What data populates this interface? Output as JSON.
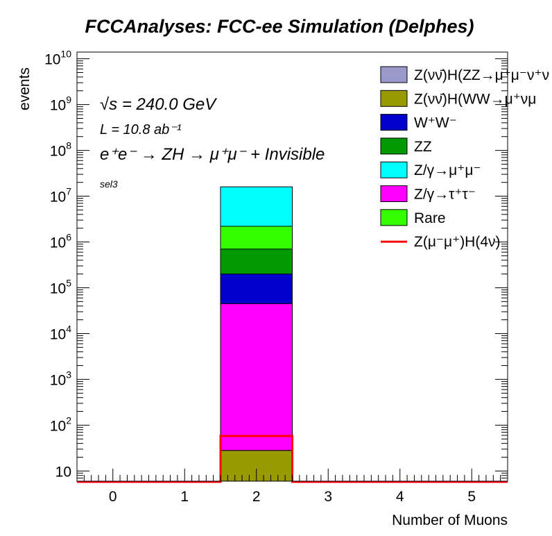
{
  "chart_data": {
    "type": "bar",
    "title": "FCCAnalyses: FCC-ee Simulation (Delphes)",
    "xlabel": "Number of Muons",
    "ylabel": "events",
    "xlim": [
      -0.5,
      5.5
    ],
    "ylim": [
      6,
      14000000000
    ],
    "yscale": "log",
    "stacked": true,
    "grid": false,
    "legend_position": "top-right",
    "x_ticks": [
      "0",
      "1",
      "2",
      "3",
      "4",
      "5"
    ],
    "y_ticks": [
      {
        "value": 10,
        "base": "10",
        "exp": ""
      },
      {
        "value": 100,
        "base": "10",
        "exp": "2"
      },
      {
        "value": 1000,
        "base": "10",
        "exp": "3"
      },
      {
        "value": 10000,
        "base": "10",
        "exp": "4"
      },
      {
        "value": 100000,
        "base": "10",
        "exp": "5"
      },
      {
        "value": 1000000,
        "base": "10",
        "exp": "6"
      },
      {
        "value": 10000000,
        "base": "10",
        "exp": "7"
      },
      {
        "value": 100000000,
        "base": "10",
        "exp": "8"
      },
      {
        "value": 1000000000,
        "base": "10",
        "exp": "9"
      },
      {
        "value": 10000000000,
        "base": "10",
        "exp": "10"
      }
    ],
    "bin": {
      "low": 1.5,
      "high": 2.5
    },
    "stack": [
      {
        "name": "Z(νν̄)H(ZZ→μ⁺μ⁻ν⁺ν",
        "color": "#9999cc",
        "cumulative": 28
      },
      {
        "name": "Z(νν̄)H(WW→μ⁺νμ",
        "color": "#999900",
        "cumulative": 28
      },
      {
        "name": "W⁺W⁻",
        "color": "#0000cc",
        "cumulative": 200000
      },
      {
        "name": "ZZ",
        "color": "#009900",
        "cumulative": 700000
      },
      {
        "name": "Z/γ→μ⁺μ⁻",
        "color": "#00ffff",
        "cumulative": 16000000
      },
      {
        "name": "Z/γ→τ⁺τ⁻",
        "color": "#ff00ff",
        "cumulative": 45000
      },
      {
        "name": "Rare",
        "color": "#33ff00",
        "cumulative": 2200000
      }
    ],
    "signal": {
      "name": "Z(μ⁻μ⁺)H(4ν)",
      "color": "#ff0000",
      "value": 58
    },
    "annotations": {
      "sqrt_s": "√s = 240.0 GeV",
      "lumi": "L = 10.8 ab⁻¹",
      "process": "e⁺e⁻ → ZH → μ⁺μ⁻ + Invisible",
      "selection": "sel3"
    }
  }
}
